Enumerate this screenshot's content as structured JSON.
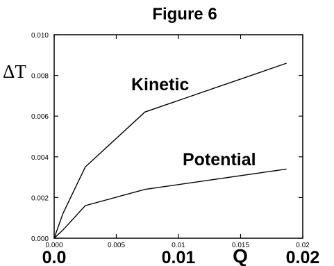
{
  "chart_data": {
    "type": "line",
    "title": "Figure 6",
    "xlabel": "Q",
    "ylabel": "ΔT",
    "xlim": [
      0,
      0.02
    ],
    "ylim": [
      0,
      0.01
    ],
    "grid": false,
    "x_ticks_small": [
      "0.000",
      "0.005",
      "0.01",
      "0.015",
      "0.02"
    ],
    "x_ticks_big": [
      "0.0",
      "0.01",
      "0.02"
    ],
    "y_ticks": [
      "0.000",
      "0.002",
      "0.004",
      "0.006",
      "0.008",
      "0.010"
    ],
    "series": [
      {
        "name": "Kinetic",
        "x": [
          0,
          0.0007,
          0.0025,
          0.0073,
          0.0187
        ],
        "y": [
          0,
          0.0012,
          0.0035,
          0.0062,
          0.0086
        ]
      },
      {
        "name": "Potential",
        "x": [
          0,
          0.0007,
          0.0025,
          0.0073,
          0.0187
        ],
        "y": [
          0,
          0.0004,
          0.0016,
          0.0024,
          0.0034
        ]
      }
    ],
    "line_color": "#000000"
  }
}
